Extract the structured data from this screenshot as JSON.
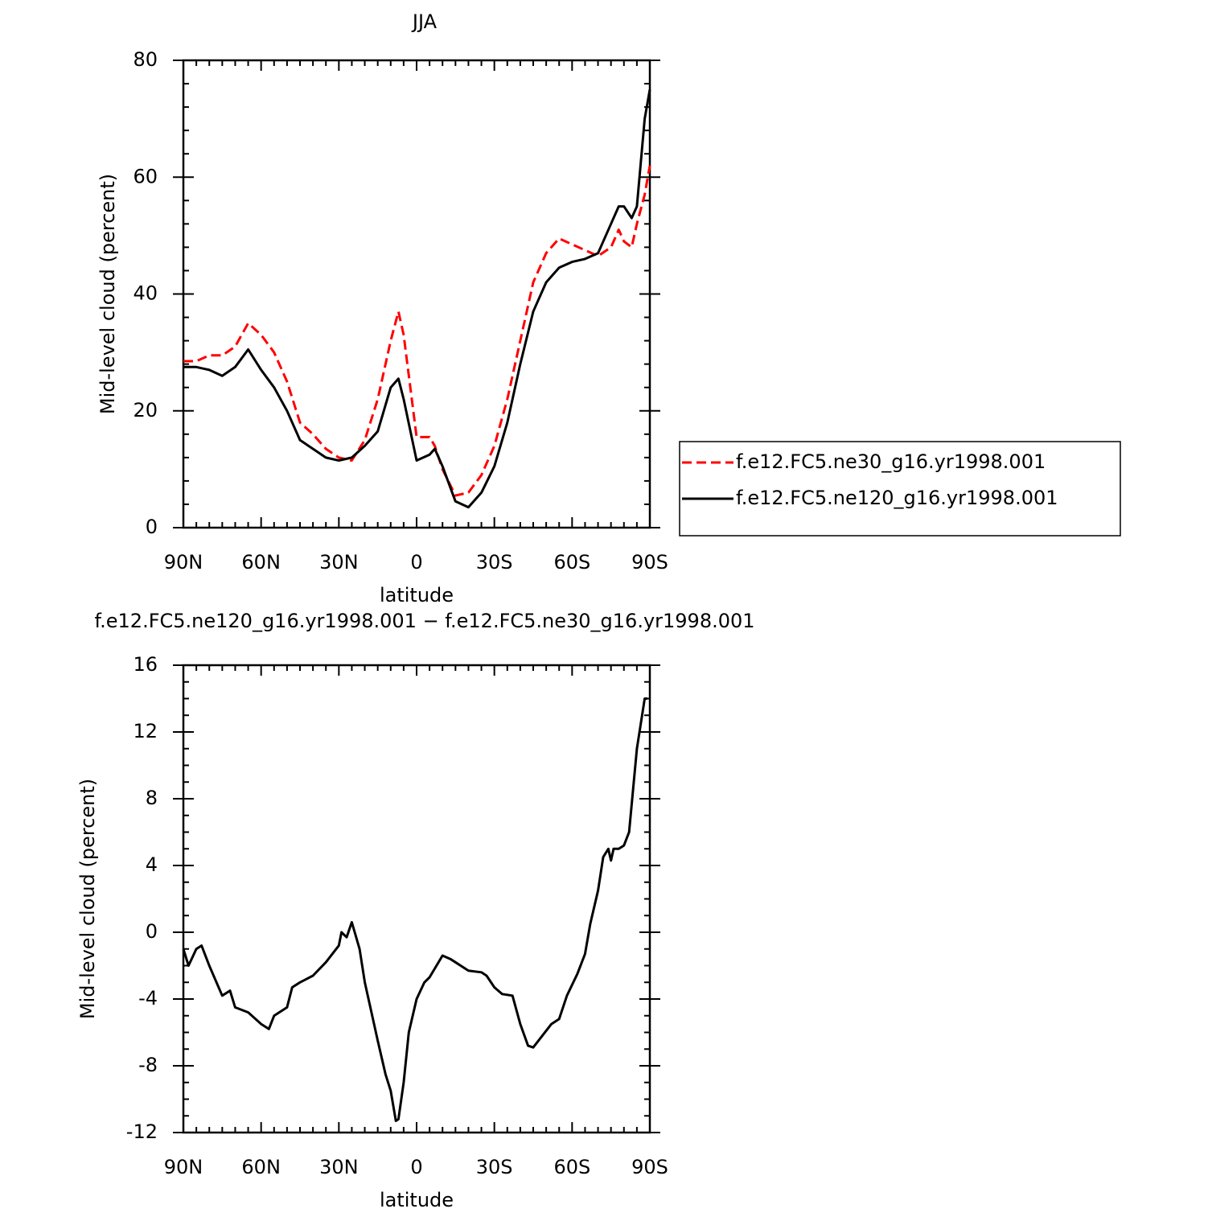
{
  "chart_data": [
    {
      "type": "line",
      "title": "JJA",
      "x_label": "latitude",
      "y_label": "Mid-level cloud (percent)",
      "x": [
        90,
        85,
        80,
        75,
        70,
        65,
        60,
        55,
        50,
        45,
        40,
        35,
        30,
        25,
        20,
        15,
        10,
        7,
        5,
        0,
        -5,
        -7,
        -10,
        -15,
        -20,
        -25,
        -30,
        -35,
        -40,
        -45,
        -50,
        -55,
        -60,
        -65,
        -70,
        -75,
        -78,
        -80,
        -83,
        -85,
        -88,
        -90
      ],
      "series": [
        {
          "name": "f.e12.FC5.ne30_g16.yr1998.001",
          "color": "#ff0000",
          "line_style": "dashed",
          "values": [
            28.5,
            28.5,
            29.5,
            29.5,
            31,
            35,
            33,
            30,
            25,
            18,
            16,
            13.5,
            12,
            11.5,
            15,
            22,
            32,
            37,
            33,
            15.5,
            15.5,
            14,
            10,
            5.5,
            6,
            9,
            14,
            22,
            32,
            42,
            47,
            49.5,
            48.5,
            47.5,
            46.5,
            48,
            51,
            49,
            48,
            52,
            57,
            62
          ]
        },
        {
          "name": "f.e12.FC5.ne120_g16.yr1998.001",
          "color": "#000000",
          "line_style": "solid",
          "values": [
            27.5,
            27.5,
            27,
            26,
            27.5,
            30.5,
            27,
            24,
            20,
            15,
            13.5,
            12,
            11.5,
            12,
            14,
            16.5,
            24,
            25.5,
            22,
            11.5,
            12.5,
            13.5,
            10.5,
            4.5,
            3.5,
            6,
            10.5,
            18,
            28,
            37,
            42,
            44.5,
            45.5,
            46,
            47,
            52,
            55,
            55,
            53,
            55,
            70,
            75
          ]
        }
      ],
      "xlim": [
        90,
        -90
      ],
      "xticks": [
        {
          "value": 90,
          "label": "90N"
        },
        {
          "value": 60,
          "label": "60N"
        },
        {
          "value": 30,
          "label": "30N"
        },
        0,
        {
          "value": -30,
          "label": "30S"
        },
        {
          "value": -60,
          "label": "60S"
        },
        {
          "value": -90,
          "label": "90S"
        }
      ],
      "ylim": [
        0,
        80
      ],
      "yticks": [
        0,
        20,
        40,
        60,
        80
      ],
      "legend": "right"
    },
    {
      "type": "line",
      "title": "f.e12.FC5.ne120_g16.yr1998.001 − f.e12.FC5.ne30_g16.yr1998.001",
      "x_label": "latitude",
      "y_label": "Mid-level cloud (percent)",
      "x": [
        90,
        88,
        85,
        83,
        80,
        75,
        72,
        70,
        65,
        60,
        57,
        55,
        50,
        48,
        45,
        40,
        35,
        30,
        29,
        27,
        25,
        22,
        20,
        15,
        12,
        10,
        8,
        7,
        5,
        3,
        0,
        -3,
        -5,
        -10,
        -13,
        -15,
        -20,
        -25,
        -27,
        -30,
        -33,
        -37,
        -40,
        -43,
        -45,
        -48,
        -52,
        -55,
        -58,
        -62,
        -65,
        -67,
        -70,
        -72,
        -74,
        -75,
        -76,
        -78,
        -80,
        -82,
        -85,
        -88,
        -89
      ],
      "values": [
        -1,
        -2,
        -1,
        -0.8,
        -2,
        -3.8,
        -3.5,
        -4.5,
        -4.8,
        -5.5,
        -5.8,
        -5,
        -4.5,
        -3.3,
        -3,
        -2.6,
        -1.8,
        -0.8,
        0,
        -0.3,
        0.6,
        -1,
        -3,
        -6.5,
        -8.5,
        -9.5,
        -11.3,
        -11.2,
        -9,
        -6,
        -4,
        -3,
        -2.7,
        -1.4,
        -1.6,
        -1.8,
        -2.3,
        -2.4,
        -2.6,
        -3.3,
        -3.7,
        -3.8,
        -5.5,
        -6.8,
        -6.9,
        -6.3,
        -5.5,
        -5.2,
        -3.8,
        -2.5,
        -1.3,
        0.5,
        2.5,
        4.5,
        5,
        4.3,
        5,
        5,
        5.2,
        6,
        11,
        14,
        14
      ],
      "color": "#000000",
      "line_style": "solid",
      "xlim": [
        90,
        -90
      ],
      "xticks": [
        {
          "value": 90,
          "label": "90N"
        },
        {
          "value": 60,
          "label": "60N"
        },
        {
          "value": 30,
          "label": "30N"
        },
        0,
        {
          "value": -30,
          "label": "30S"
        },
        {
          "value": -60,
          "label": "60S"
        },
        {
          "value": -90,
          "label": "90S"
        }
      ],
      "ylim": [
        -12,
        16
      ],
      "yticks": [
        -12,
        -8,
        -4,
        0,
        4,
        8,
        12,
        16
      ]
    }
  ]
}
